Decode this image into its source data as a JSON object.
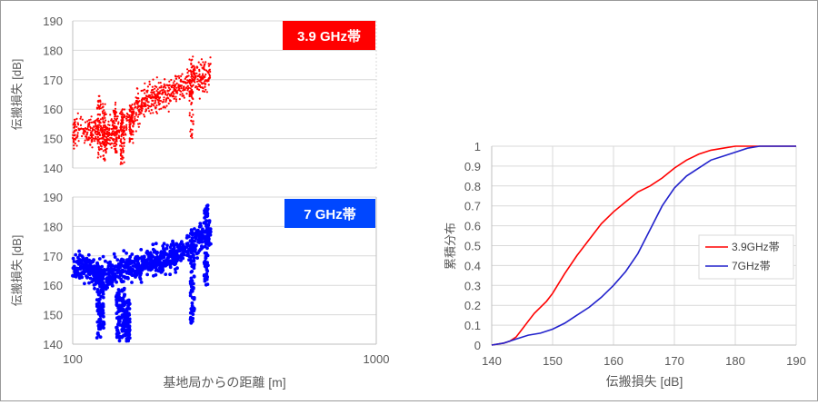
{
  "chart_data": [
    {
      "type": "scatter",
      "panel": "top",
      "badge": "3.9 GHz帯",
      "color": "#ff0000",
      "ylabel": "伝搬損失 [dB]",
      "xlabel": "",
      "xscale": "log",
      "xlim": [
        100,
        1000
      ],
      "ylim": [
        140,
        190
      ],
      "yticks": [
        "140",
        "150",
        "160",
        "170",
        "180",
        "190"
      ],
      "xticks": [],
      "grid": true,
      "trend": [
        {
          "x": 100,
          "y": 152
        },
        {
          "x": 108,
          "y": 153
        },
        {
          "x": 118,
          "y": 152
        },
        {
          "x": 128,
          "y": 151
        },
        {
          "x": 140,
          "y": 153
        },
        {
          "x": 150,
          "y": 155
        },
        {
          "x": 160,
          "y": 159
        },
        {
          "x": 175,
          "y": 163
        },
        {
          "x": 195,
          "y": 165
        },
        {
          "x": 220,
          "y": 167
        },
        {
          "x": 250,
          "y": 170
        },
        {
          "x": 270,
          "y": 171
        },
        {
          "x": 285,
          "y": 172
        }
      ],
      "spread": 7,
      "clusters": [
        {
          "x": 122,
          "y": [
            143,
            165
          ]
        },
        {
          "x": 127,
          "y": [
            142,
            162
          ]
        },
        {
          "x": 138,
          "y": [
            145,
            163
          ]
        },
        {
          "x": 146,
          "y": [
            141,
            160
          ]
        },
        {
          "x": 156,
          "y": [
            148,
            162
          ]
        },
        {
          "x": 246,
          "y": [
            150,
            178
          ]
        }
      ]
    },
    {
      "type": "scatter",
      "panel": "bottom",
      "badge": "7 GHz帯",
      "color": "#0000ff",
      "ylabel": "伝搬損失 [dB]",
      "xlabel": "基地局からの距離 [m]",
      "xscale": "log",
      "xlim": [
        100,
        1000
      ],
      "ylim": [
        140,
        190
      ],
      "yticks": [
        "140",
        "150",
        "160",
        "170",
        "180",
        "190"
      ],
      "xticks": [
        "100",
        "1000"
      ],
      "grid": true,
      "trend": [
        {
          "x": 100,
          "y": 166
        },
        {
          "x": 110,
          "y": 166
        },
        {
          "x": 120,
          "y": 164
        },
        {
          "x": 130,
          "y": 163
        },
        {
          "x": 142,
          "y": 165
        },
        {
          "x": 155,
          "y": 166
        },
        {
          "x": 170,
          "y": 167
        },
        {
          "x": 190,
          "y": 168
        },
        {
          "x": 215,
          "y": 170
        },
        {
          "x": 240,
          "y": 173
        },
        {
          "x": 265,
          "y": 177
        },
        {
          "x": 285,
          "y": 178
        }
      ],
      "spread": 6,
      "clusters": [
        {
          "x": 122,
          "y": [
            142,
            168
          ]
        },
        {
          "x": 125,
          "y": [
            145,
            165
          ]
        },
        {
          "x": 141,
          "y": [
            141,
            158
          ]
        },
        {
          "x": 147,
          "y": [
            142,
            160
          ]
        },
        {
          "x": 152,
          "y": [
            141,
            155
          ]
        },
        {
          "x": 248,
          "y": [
            147,
            170
          ]
        },
        {
          "x": 275,
          "y": [
            160,
            188
          ]
        }
      ]
    },
    {
      "type": "line",
      "panel": "cdf",
      "xlabel": "伝搬損失 [dB]",
      "ylabel": "累積分布",
      "xlim": [
        140,
        190
      ],
      "ylim": [
        0,
        1
      ],
      "xticks": [
        "140",
        "150",
        "160",
        "170",
        "180",
        "190"
      ],
      "yticks": [
        "0",
        "0.1",
        "0.2",
        "0.3",
        "0.4",
        "0.5",
        "0.6",
        "0.7",
        "0.8",
        "0.9",
        "1"
      ],
      "grid": true,
      "legend_position": "center-right",
      "series": [
        {
          "name": "3.9GHz帯",
          "color": "#ff0000",
          "x": [
            140,
            142,
            143,
            144,
            145,
            146,
            147,
            148,
            149,
            150,
            152,
            154,
            156,
            158,
            160,
            162,
            164,
            166,
            168,
            170,
            172,
            174,
            176,
            178,
            180,
            182,
            184,
            186,
            188,
            190
          ],
          "y": [
            0,
            0.01,
            0.02,
            0.04,
            0.08,
            0.12,
            0.16,
            0.19,
            0.22,
            0.26,
            0.36,
            0.45,
            0.53,
            0.61,
            0.67,
            0.72,
            0.77,
            0.8,
            0.84,
            0.89,
            0.93,
            0.96,
            0.98,
            0.99,
            1.0,
            1.0,
            1.0,
            1.0,
            1.0,
            1.0
          ]
        },
        {
          "name": "7GHz帯",
          "color": "#2222cc",
          "x": [
            140,
            142,
            144,
            146,
            148,
            150,
            152,
            154,
            156,
            158,
            160,
            162,
            164,
            166,
            168,
            170,
            172,
            174,
            176,
            178,
            180,
            182,
            184,
            186,
            188,
            190
          ],
          "y": [
            0,
            0.01,
            0.03,
            0.05,
            0.06,
            0.08,
            0.11,
            0.15,
            0.19,
            0.24,
            0.3,
            0.37,
            0.46,
            0.58,
            0.7,
            0.79,
            0.85,
            0.89,
            0.93,
            0.95,
            0.97,
            0.99,
            1.0,
            1.0,
            1.0,
            1.0
          ]
        }
      ]
    }
  ]
}
